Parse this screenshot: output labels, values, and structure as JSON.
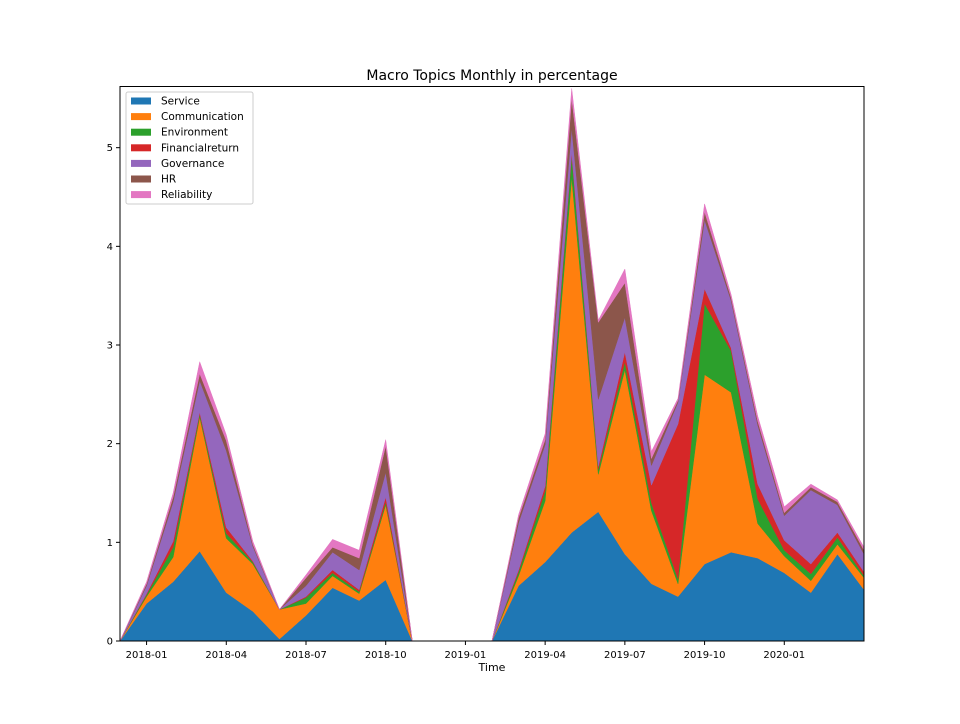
{
  "chart_data": {
    "type": "area",
    "stacked": true,
    "title": "Macro Topics Monthly in percentage",
    "xlabel": "Time",
    "ylabel": "",
    "x": [
      "2017-12",
      "2018-01",
      "2018-02",
      "2018-03",
      "2018-04",
      "2018-05",
      "2018-06",
      "2018-07",
      "2018-08",
      "2018-09",
      "2018-10",
      "2018-11",
      "2018-12",
      "2019-01",
      "2019-02",
      "2019-03",
      "2019-04",
      "2019-05",
      "2019-06",
      "2019-07",
      "2019-08",
      "2019-09",
      "2019-10",
      "2019-11",
      "2019-12",
      "2020-01",
      "2020-02",
      "2020-03",
      "2020-04"
    ],
    "xticks": [
      "2018-01",
      "2018-04",
      "2018-07",
      "2018-10",
      "2019-01",
      "2019-04",
      "2019-07",
      "2019-10",
      "2020-01"
    ],
    "yticks": [
      "0",
      "1",
      "2",
      "3",
      "4",
      "5"
    ],
    "xlim": [
      "2017-12",
      "2020-04"
    ],
    "ylim": [
      0,
      5.62
    ],
    "legend_position": "top-left",
    "grid": false,
    "series": [
      {
        "name": "Service",
        "color": "#1f77b4",
        "values": [
          0,
          0.38,
          0.6,
          0.91,
          0.49,
          0.3,
          0.02,
          0.26,
          0.54,
          0.41,
          0.62,
          0,
          0,
          0,
          0,
          0.56,
          0.8,
          1.1,
          1.31,
          0.88,
          0.58,
          0.45,
          0.78,
          0.9,
          0.84,
          0.69,
          0.49,
          0.88,
          0.52
        ]
      },
      {
        "name": "Communication",
        "color": "#ff7f0e",
        "values": [
          0,
          0.07,
          0.25,
          1.36,
          0.55,
          0.48,
          0.3,
          0.12,
          0.12,
          0.07,
          0.76,
          0,
          0,
          0,
          0,
          0.1,
          0.62,
          3.6,
          0.38,
          1.87,
          0.74,
          0.13,
          1.92,
          1.62,
          0.35,
          0.17,
          0.12,
          0.1,
          0.12
        ]
      },
      {
        "name": "Environment",
        "color": "#2ca02c",
        "values": [
          0,
          0.02,
          0.1,
          0.03,
          0.05,
          0.02,
          0.0,
          0.06,
          0.03,
          0.02,
          0.03,
          0,
          0,
          0,
          0,
          0.04,
          0.1,
          0.22,
          0.05,
          0.08,
          0.08,
          0.05,
          0.72,
          0.42,
          0.25,
          0.06,
          0.07,
          0.07,
          0.02
        ]
      },
      {
        "name": "Financialreturn",
        "color": "#d62728",
        "values": [
          0,
          0.01,
          0.06,
          0.02,
          0.06,
          0.01,
          0.0,
          0.01,
          0.03,
          0.02,
          0.05,
          0,
          0,
          0,
          0,
          0.02,
          0.05,
          0.03,
          0.03,
          0.1,
          0.18,
          1.57,
          0.15,
          0.03,
          0.15,
          0.1,
          0.1,
          0.05,
          0.04
        ]
      },
      {
        "name": "Governance",
        "color": "#9467bd",
        "values": [
          0,
          0.08,
          0.4,
          0.32,
          0.78,
          0.15,
          0.0,
          0.11,
          0.18,
          0.2,
          0.25,
          0,
          0,
          0,
          0,
          0.48,
          0.42,
          0.25,
          0.68,
          0.35,
          0.2,
          0.22,
          0.7,
          0.48,
          0.6,
          0.25,
          0.75,
          0.28,
          0.18
        ]
      },
      {
        "name": "HR",
        "color": "#8c564b",
        "values": [
          0,
          0.02,
          0.05,
          0.07,
          0.1,
          0.02,
          0.0,
          0.08,
          0.05,
          0.12,
          0.27,
          0,
          0,
          0,
          0,
          0.05,
          0.05,
          0.3,
          0.78,
          0.35,
          0.07,
          0.02,
          0.08,
          0.03,
          0.04,
          0.03,
          0.03,
          0.03,
          0.04
        ]
      },
      {
        "name": "Reliability",
        "color": "#e377c2",
        "values": [
          0,
          0.02,
          0.04,
          0.12,
          0.06,
          0.03,
          0.0,
          0.03,
          0.08,
          0.08,
          0.06,
          0,
          0,
          0,
          0,
          0.03,
          0.06,
          0.1,
          0.02,
          0.14,
          0.07,
          0.02,
          0.08,
          0.03,
          0.05,
          0.06,
          0.03,
          0.02,
          0.03
        ]
      }
    ]
  }
}
